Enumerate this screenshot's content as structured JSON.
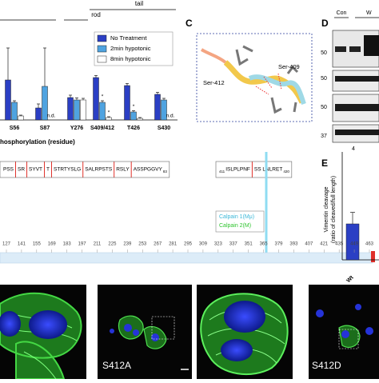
{
  "chart_data": [
    {
      "type": "bar",
      "categories": [
        "S56",
        "S87",
        "Y276",
        "S409/412",
        "T426",
        "S430"
      ],
      "series": [
        {
          "name": "No Treatment",
          "color": "#2b3fc4",
          "values": [
            1.0,
            0.3,
            0.56,
            1.06,
            0.86,
            0.64
          ],
          "errors": [
            0.8,
            0.1,
            0.06,
            0.05,
            0.05,
            0.05
          ]
        },
        {
          "name": "2min hypotonic",
          "color": "#4fa3e0",
          "values": [
            0.44,
            0.84,
            0.5,
            0.44,
            0.2,
            0.5
          ],
          "errors": [
            0.04,
            0.96,
            0.05,
            0.04,
            0.03,
            0.04
          ],
          "value_labels": [
            null,
            null,
            null,
            "*",
            "*",
            null
          ]
        },
        {
          "name": "8min hypotonic",
          "color": "#ffffff",
          "values": [
            0.1,
            null,
            0.5,
            0.06,
            0.04,
            null
          ],
          "errors": [
            0.02,
            null,
            0.04,
            0.02,
            0.02,
            null
          ],
          "value_labels": [
            null,
            "n.d.",
            null,
            "*",
            null,
            "n.d."
          ]
        }
      ],
      "ylim": [
        0,
        2.4
      ],
      "group_labels": [
        "rod",
        "tail"
      ],
      "x_label": "hosphorylation (residue)"
    },
    {
      "type": "bar",
      "panel": "E",
      "ylabel": [
        "Vimentin cleavage",
        "(ratio of cleaved/full length)"
      ],
      "categories": [
        "Wt"
      ],
      "values": [
        0.5
      ],
      "errors": [
        0.16
      ],
      "color": "#2b3fc4",
      "ylim": [
        0,
        1.5
      ]
    }
  ],
  "panel_c": {
    "label": "C",
    "ser409": "Ser-409",
    "ser412": "Ser-412"
  },
  "panel_d": {
    "label": "D",
    "lanes": [
      "Con",
      "W"
    ],
    "markers": [
      "50",
      "50",
      "50",
      "37"
    ],
    "footer": "4"
  },
  "sequence": {
    "segments": [
      "PSS",
      "SR",
      "SYVT",
      "T",
      "STRTYSLG",
      "SALRPSTS",
      "RSLY",
      "ASSPGGVY"
    ],
    "segments_end": "83",
    "tail_start": "411",
    "tail_segments": [
      "ISLPLPNF",
      "SS LNLRET"
    ],
    "tail_end": "420",
    "legend": [
      "Calpain 1(Mμ)",
      "Calpain 2(M)"
    ],
    "positions": [
      127,
      141,
      155,
      169,
      183,
      197,
      211,
      225,
      239,
      253,
      267,
      281,
      295,
      309,
      323,
      337,
      351,
      365,
      379,
      393,
      407,
      421,
      435,
      449,
      463
    ]
  },
  "images": {
    "labels": [
      "S412A",
      "S412D"
    ]
  }
}
